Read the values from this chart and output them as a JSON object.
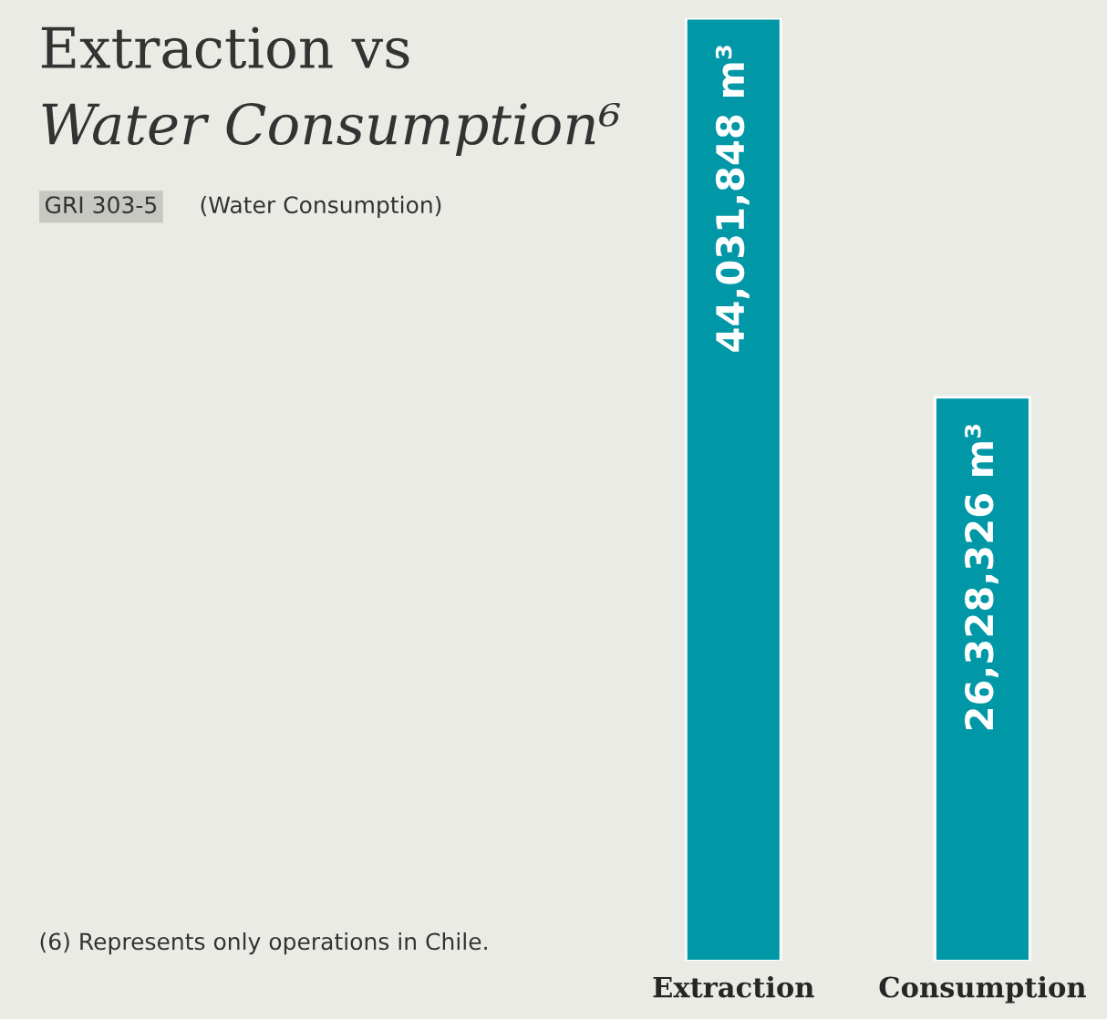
{
  "chart_data": {
    "type": "bar",
    "title": "Extraction vs\nWater Consumption⁶",
    "categories": [
      "Extraction",
      "Consumption"
    ],
    "values": [
      44031848,
      26328326
    ],
    "value_labels": [
      "44,031,848 m³",
      "26,328,326 m³"
    ],
    "color": "#0097a7",
    "annotations": [
      "GRI 303-5",
      "(Water Consumption)",
      "(6) Represents only operations in Chile."
    ],
    "grid": false,
    "legend": false
  }
}
